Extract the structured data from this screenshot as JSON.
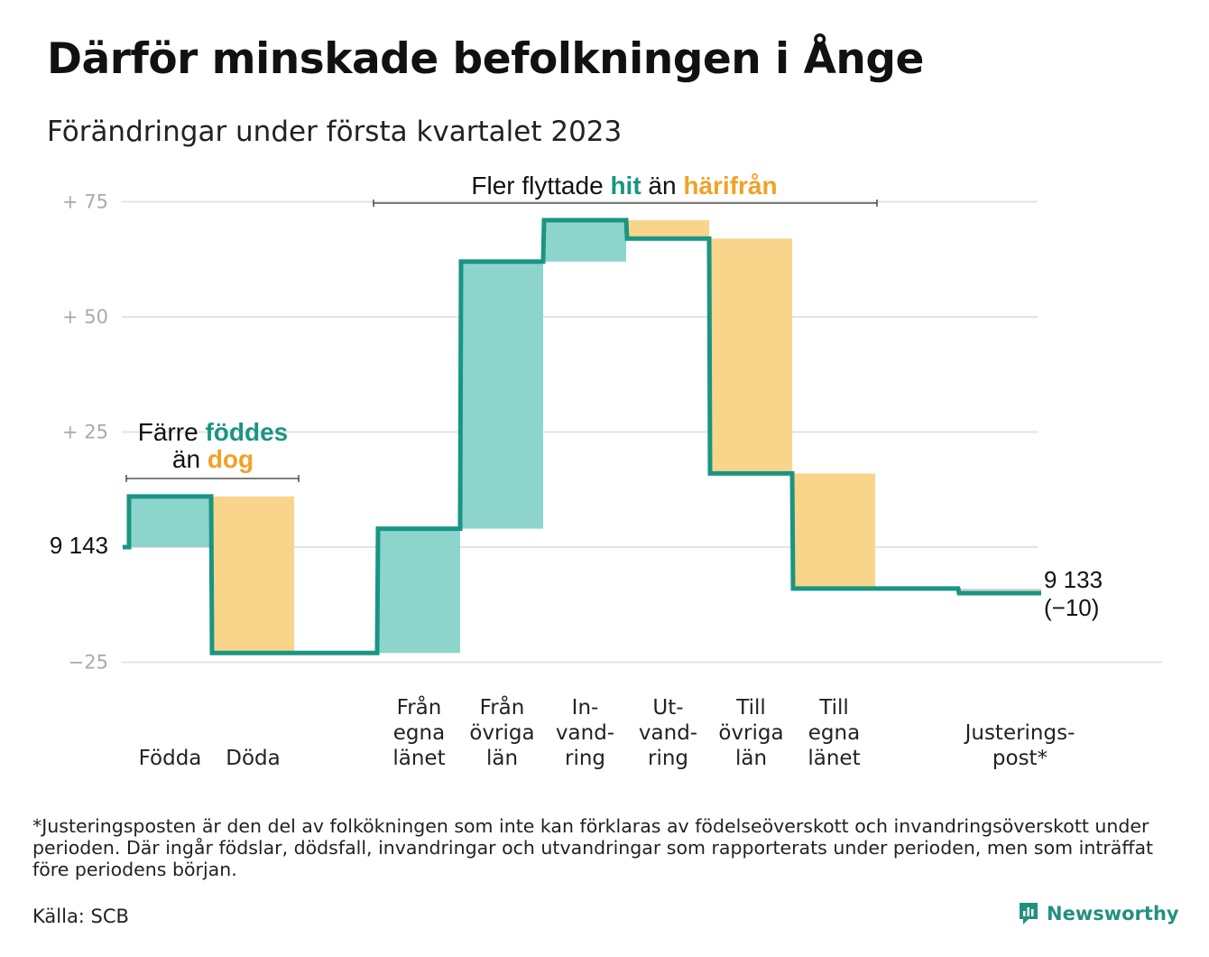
{
  "title": "Därför minskade befolkningen i Ånge",
  "subtitle": "Förändringar under första kvartalet 2023",
  "annotations": {
    "moves": {
      "prefix": "Fler flyttade ",
      "hit": "hit",
      "mid": " än ",
      "har": "härifrån"
    },
    "births_line1_prefix": "Färre ",
    "births_line1_em": "föddes",
    "births_line2_prefix": "än ",
    "births_line2_em": "dog"
  },
  "footnote": "*Justeringsposten är den del av folkökningen som inte kan förklaras av födelseöverskott och invandringsöverskott under perioden. Där ingår födslar, dödsfall, invandringar och utvandringar som rapporterats under perioden, men som inträffat före periodens början.",
  "source": "Källa: SCB",
  "brand": "Newsworthy",
  "colors": {
    "increase": "#8dd5cc",
    "decrease": "#f9d48b",
    "line": "#1a9584",
    "accent_teal": "#1a9584",
    "accent_orange": "#f2a126",
    "grid": "#e3e3e3",
    "adjust": "#d6d6d6"
  },
  "chart_data": {
    "type": "waterfall",
    "start": {
      "label": "9 143",
      "value": 9143
    },
    "end": {
      "label": "9 133",
      "change_label": "(−10)",
      "value": 9133
    },
    "y_tick_labels": [
      "+ 75",
      "+ 50",
      "+ 25",
      "9 143",
      "−25"
    ],
    "y_tick_values": [
      75,
      50,
      25,
      0,
      -25
    ],
    "ylim": [
      -25,
      75
    ],
    "steps": [
      {
        "label_lines": [
          "Födda"
        ],
        "change": 11,
        "kind": "increase"
      },
      {
        "label_lines": [
          "Döda"
        ],
        "change": -34,
        "kind": "decrease"
      },
      {
        "label_lines": [
          ""
        ],
        "change": 0,
        "kind": "gap"
      },
      {
        "label_lines": [
          "Från",
          "egna",
          "länet"
        ],
        "change": 27,
        "kind": "increase"
      },
      {
        "label_lines": [
          "Från",
          "övriga",
          "län"
        ],
        "change": 58,
        "kind": "increase"
      },
      {
        "label_lines": [
          "In-",
          "vand-",
          "ring"
        ],
        "change": 9,
        "kind": "increase"
      },
      {
        "label_lines": [
          "Ut-",
          "vand-",
          "ring"
        ],
        "change": -4,
        "kind": "decrease"
      },
      {
        "label_lines": [
          "Till",
          "övriga",
          "län"
        ],
        "change": -51,
        "kind": "decrease"
      },
      {
        "label_lines": [
          "Till",
          "egna",
          "länet"
        ],
        "change": -25,
        "kind": "decrease"
      },
      {
        "label_lines": [
          ""
        ],
        "change": 0,
        "kind": "gap"
      },
      {
        "label_lines": [
          "Justerings-",
          "post*"
        ],
        "change": -1,
        "kind": "adjust"
      }
    ]
  }
}
